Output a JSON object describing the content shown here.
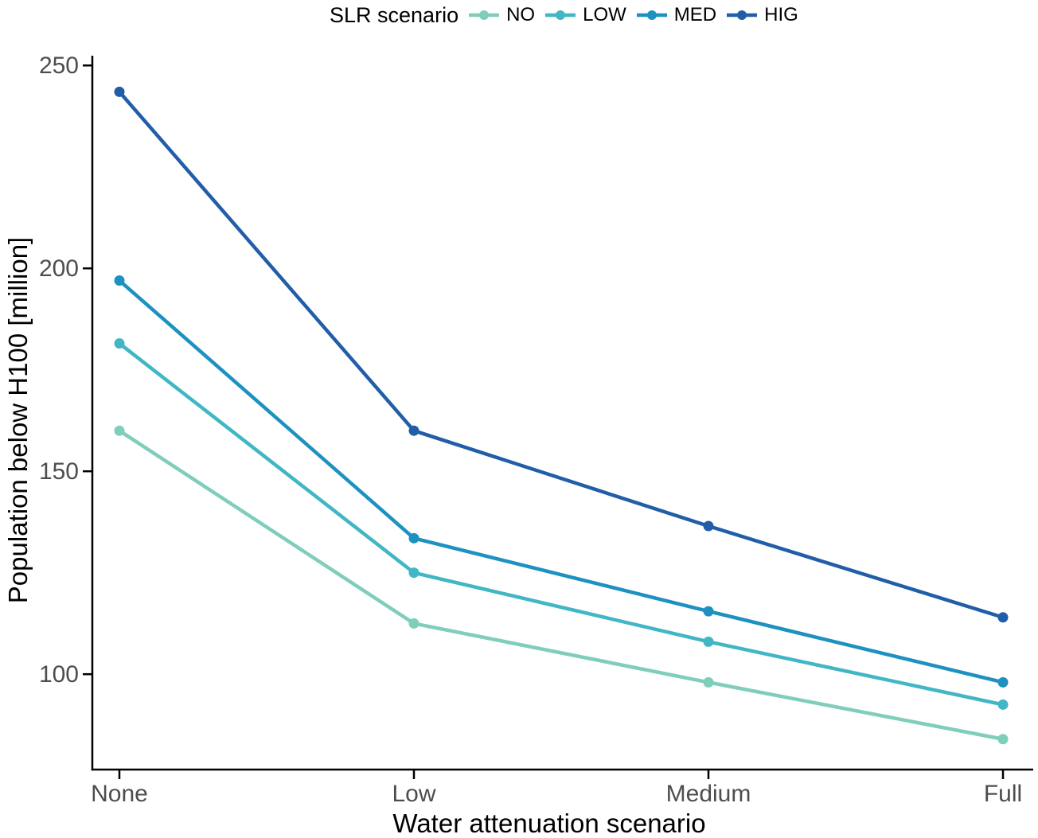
{
  "chart_data": {
    "type": "line",
    "title": "",
    "legend_title": "SLR scenario",
    "legend_position": "top-center",
    "xlabel": "Water attenuation scenario",
    "ylabel": "Population below H100 [million]",
    "categories": [
      "None",
      "Low",
      "Medium",
      "Full"
    ],
    "series": [
      {
        "name": "NO",
        "color": "#7fcdbb",
        "values": [
          160.0,
          112.5,
          98.0,
          84.0
        ]
      },
      {
        "name": "LOW",
        "color": "#41b6c4",
        "values": [
          181.5,
          125.0,
          108.0,
          92.5
        ]
      },
      {
        "name": "MED",
        "color": "#1d91c0",
        "values": [
          197.0,
          133.5,
          115.5,
          98.0
        ]
      },
      {
        "name": "HIG",
        "color": "#225ea8",
        "values": [
          243.5,
          160.0,
          136.5,
          114.0
        ]
      }
    ],
    "yticks": [
      100,
      150,
      200,
      250
    ],
    "ylim": [
      76.5,
      252.4
    ],
    "grid": false,
    "marker": "circle",
    "axis_color": "#000000",
    "tick_label_color": "#4d4d4d"
  }
}
